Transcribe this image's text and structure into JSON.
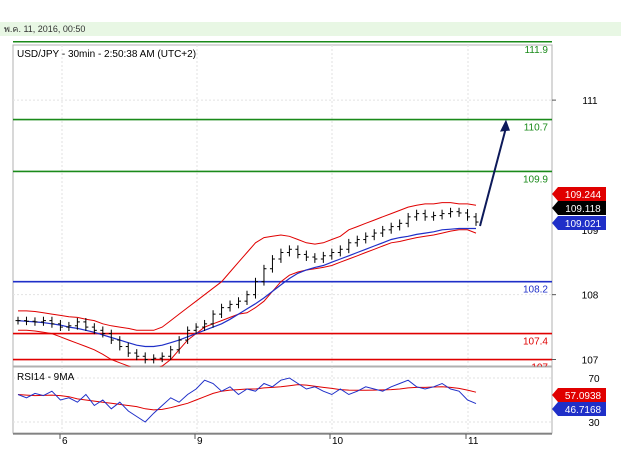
{
  "header": {
    "date_text": "พ.ค. 11, 2016, 00:50"
  },
  "chart_data": {
    "type": "line",
    "title": "USD/JPY - 30min - 2:50:38 AM (UTC+2)",
    "price_axis": {
      "ticks": [
        107,
        108,
        111
      ],
      "partial_tick": "109",
      "ylim": [
        106.9,
        111.85
      ]
    },
    "x_ticks": [
      "6",
      "9",
      "10",
      "11"
    ],
    "levels": [
      {
        "label": "111.9",
        "value": 111.9,
        "color": "#1a8a1a"
      },
      {
        "label": "110.7",
        "value": 110.7,
        "color": "#1a8a1a"
      },
      {
        "label": "109.9",
        "value": 109.9,
        "color": "#1a8a1a"
      },
      {
        "label": "108.2",
        "value": 108.2,
        "color": "#1f2fc8"
      },
      {
        "label": "107.4",
        "value": 107.4,
        "color": "#e00000"
      },
      {
        "label": "107",
        "value": 107.0,
        "color": "#e00000"
      }
    ],
    "price_tags": [
      {
        "label": "109.244",
        "value": 109.244,
        "color": "#e00000"
      },
      {
        "label": "109.118",
        "value": 109.118,
        "color": "#000000"
      },
      {
        "label": "109.021",
        "value": 109.021,
        "color": "#1f2fc8"
      }
    ],
    "close": [
      107.6,
      107.59,
      107.58,
      107.6,
      107.55,
      107.5,
      107.52,
      107.58,
      107.5,
      107.45,
      107.4,
      107.3,
      107.2,
      107.1,
      107.05,
      107.0,
      107.02,
      107.05,
      107.15,
      107.3,
      107.45,
      107.5,
      107.55,
      107.7,
      107.8,
      107.85,
      107.9,
      108.0,
      108.2,
      108.4,
      108.55,
      108.65,
      108.7,
      108.62,
      108.58,
      108.55,
      108.6,
      108.65,
      108.7,
      108.8,
      108.85,
      108.9,
      108.95,
      109.0,
      109.05,
      109.1,
      109.2,
      109.25,
      109.2,
      109.22,
      109.25,
      109.28,
      109.26,
      109.2,
      109.12
    ],
    "bollinger_upper": [
      107.75,
      107.75,
      107.74,
      107.72,
      107.7,
      107.68,
      107.66,
      107.65,
      107.62,
      107.6,
      107.55,
      107.52,
      107.5,
      107.48,
      107.45,
      107.45,
      107.45,
      107.5,
      107.6,
      107.7,
      107.8,
      107.9,
      108.0,
      108.1,
      108.2,
      108.35,
      108.5,
      108.65,
      108.8,
      108.88,
      108.9,
      108.92,
      108.9,
      108.85,
      108.8,
      108.78,
      108.8,
      108.85,
      108.9,
      109.0,
      109.05,
      109.1,
      109.15,
      109.2,
      109.25,
      109.3,
      109.35,
      109.38,
      109.4,
      109.4,
      109.42,
      109.42,
      109.4,
      109.4,
      109.38
    ],
    "bollinger_lower": [
      107.45,
      107.45,
      107.44,
      107.42,
      107.4,
      107.35,
      107.3,
      107.25,
      107.2,
      107.15,
      107.08,
      107.0,
      106.95,
      106.9,
      106.85,
      106.85,
      106.85,
      106.9,
      107.0,
      107.15,
      107.3,
      107.4,
      107.5,
      107.55,
      107.6,
      107.65,
      107.7,
      107.72,
      107.8,
      107.9,
      108.05,
      108.2,
      108.3,
      108.35,
      108.38,
      108.4,
      108.42,
      108.45,
      108.5,
      108.55,
      108.6,
      108.65,
      108.7,
      108.75,
      108.8,
      108.82,
      108.85,
      108.88,
      108.9,
      108.92,
      108.95,
      108.98,
      109.0,
      109.0,
      108.95
    ],
    "moving_average": [
      107.6,
      107.59,
      107.58,
      107.57,
      107.55,
      107.53,
      107.5,
      107.48,
      107.45,
      107.42,
      107.38,
      107.34,
      107.3,
      107.26,
      107.22,
      107.2,
      107.2,
      107.22,
      107.26,
      107.3,
      107.35,
      107.4,
      107.45,
      107.5,
      107.55,
      107.62,
      107.7,
      107.78,
      107.86,
      107.95,
      108.05,
      108.15,
      108.25,
      108.33,
      108.38,
      108.42,
      108.45,
      108.5,
      108.55,
      108.6,
      108.65,
      108.7,
      108.75,
      108.8,
      108.85,
      108.88,
      108.9,
      108.93,
      108.95,
      108.97,
      109.0,
      109.01,
      109.02,
      109.02,
      109.021
    ],
    "projection_target": 110.7,
    "rsi": {
      "label": "RSI14 - 9MA",
      "ticks": [
        30,
        70
      ],
      "ylim": [
        20,
        80
      ],
      "tags": [
        {
          "label": "57.0938",
          "value": 57.0938,
          "color": "#e00000"
        },
        {
          "label": "46.7168",
          "value": 46.7168,
          "color": "#1f2fc8"
        }
      ],
      "rsi_values": [
        55,
        52,
        56,
        54,
        58,
        50,
        52,
        48,
        55,
        45,
        50,
        42,
        48,
        40,
        35,
        30,
        38,
        45,
        52,
        48,
        55,
        60,
        68,
        65,
        58,
        62,
        55,
        60,
        58,
        65,
        62,
        68,
        70,
        65,
        60,
        62,
        58,
        55,
        60,
        55,
        58,
        62,
        60,
        58,
        62,
        65,
        68,
        62,
        60,
        62,
        65,
        60,
        58,
        50,
        46.7
      ],
      "ma_values": [
        55,
        54.5,
        54,
        54.2,
        54.5,
        54,
        53,
        51,
        50,
        49,
        48,
        47,
        46,
        45,
        44,
        42,
        41,
        41.5,
        43,
        45,
        47,
        50,
        53,
        56,
        58,
        59,
        59.5,
        60,
        60,
        61,
        61.5,
        62,
        63,
        64,
        63.5,
        62.5,
        61.5,
        60.5,
        59.5,
        59,
        58.8,
        58.8,
        59,
        59.2,
        59.5,
        60,
        61,
        61.5,
        61.5,
        61.8,
        62,
        61.5,
        60.5,
        59,
        57.1
      ]
    }
  }
}
